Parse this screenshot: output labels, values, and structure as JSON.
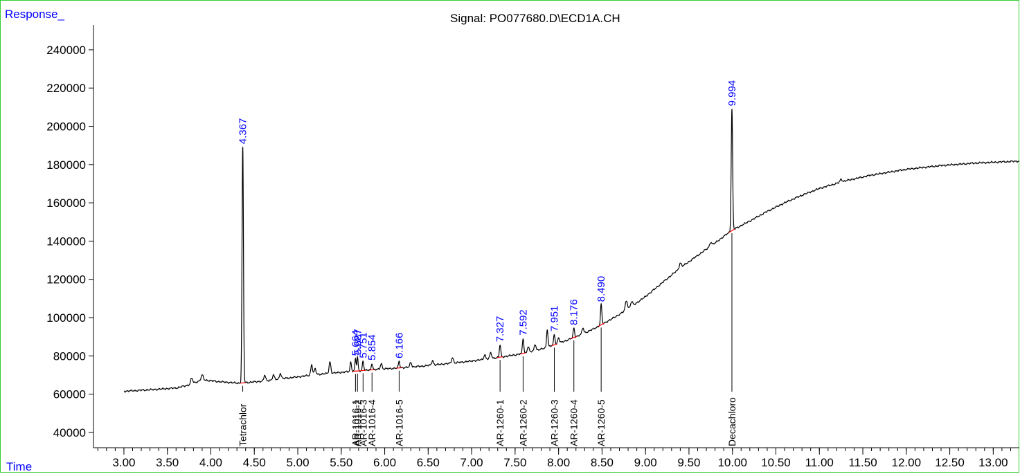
{
  "chart_data": {
    "type": "line",
    "title": "Signal: PO077680.D\\ECD1A.CH",
    "ylabel": "Response_",
    "xlabel": "Time",
    "xlim": [
      2.65,
      13.3
    ],
    "ylim": [
      32000,
      253000
    ],
    "x_ticks": [
      3.0,
      3.5,
      4.0,
      4.5,
      5.0,
      5.5,
      6.0,
      6.5,
      7.0,
      7.5,
      8.0,
      8.5,
      9.0,
      9.5,
      10.0,
      10.5,
      11.0,
      11.5,
      12.0,
      12.5,
      13.0
    ],
    "x_tick_labels": [
      "3.00",
      "3.50",
      "4.00",
      "4.50",
      "5.00",
      "5.50",
      "6.00",
      "6.50",
      "7.00",
      "7.50",
      "8.00",
      "8.50",
      "9.00",
      "9.50",
      "10.00",
      "10.50",
      "11.00",
      "11.50",
      "12.00",
      "12.50",
      "13.00"
    ],
    "y_ticks": [
      40000,
      60000,
      80000,
      100000,
      120000,
      140000,
      160000,
      180000,
      200000,
      220000,
      240000
    ],
    "y_tick_labels": [
      "40000",
      "60000",
      "80000",
      "100000",
      "120000",
      "140000",
      "160000",
      "180000",
      "200000",
      "220000",
      "240000"
    ],
    "grid": false,
    "colors": {
      "trace": "#000000",
      "peak_label": "#0000ff",
      "baseline": "#ff0000",
      "frame": "#33cc33",
      "axis_label": "#0000ff"
    },
    "baseline_points": [
      [
        3.0,
        61500
      ],
      [
        3.3,
        62300
      ],
      [
        3.6,
        63200
      ],
      [
        3.75,
        64800
      ],
      [
        3.9,
        67500
      ],
      [
        4.1,
        66500
      ],
      [
        4.3,
        65800
      ],
      [
        4.36,
        65700
      ],
      [
        4.4,
        66000
      ],
      [
        4.6,
        66800
      ],
      [
        4.8,
        68000
      ],
      [
        5.0,
        69000
      ],
      [
        5.2,
        70200
      ],
      [
        5.4,
        71000
      ],
      [
        5.6,
        71800
      ],
      [
        5.8,
        72500
      ],
      [
        6.0,
        73200
      ],
      [
        6.2,
        73800
      ],
      [
        6.4,
        74500
      ],
      [
        6.6,
        75400
      ],
      [
        6.8,
        76300
      ],
      [
        7.0,
        77300
      ],
      [
        7.2,
        78500
      ],
      [
        7.4,
        79800
      ],
      [
        7.6,
        81300
      ],
      [
        7.8,
        83500
      ],
      [
        8.0,
        86500
      ],
      [
        8.2,
        90000
      ],
      [
        8.4,
        94000
      ],
      [
        8.6,
        99000
      ],
      [
        8.8,
        104500
      ],
      [
        9.0,
        111000
      ],
      [
        9.2,
        118500
      ],
      [
        9.4,
        126000
      ],
      [
        9.6,
        132500
      ],
      [
        9.8,
        139000
      ],
      [
        9.99,
        145500
      ],
      [
        10.2,
        150500
      ],
      [
        10.4,
        155500
      ],
      [
        10.6,
        160000
      ],
      [
        10.8,
        164000
      ],
      [
        11.0,
        167500
      ],
      [
        11.3,
        171500
      ],
      [
        11.6,
        174500
      ],
      [
        12.0,
        177500
      ],
      [
        12.4,
        179500
      ],
      [
        12.8,
        180800
      ],
      [
        13.3,
        181800
      ]
    ],
    "peaks": [
      {
        "rt": 3.78,
        "height": 3000,
        "width": 0.012
      },
      {
        "rt": 3.9,
        "height": 2500,
        "width": 0.012
      },
      {
        "rt": 4.367,
        "height": 123500,
        "width": 0.008,
        "label": "4.367"
      },
      {
        "rt": 4.62,
        "height": 3000,
        "width": 0.01
      },
      {
        "rt": 4.72,
        "height": 2500,
        "width": 0.01
      },
      {
        "rt": 4.8,
        "height": 3000,
        "width": 0.01
      },
      {
        "rt": 5.16,
        "height": 5500,
        "width": 0.01
      },
      {
        "rt": 5.2,
        "height": 3000,
        "width": 0.01
      },
      {
        "rt": 5.37,
        "height": 6000,
        "width": 0.01
      },
      {
        "rt": 5.61,
        "height": 5000,
        "width": 0.008
      },
      {
        "rt": 5.664,
        "height": 6500,
        "width": 0.007,
        "label": "5.664"
      },
      {
        "rt": 5.687,
        "height": 7000,
        "width": 0.007,
        "label": "5.687"
      },
      {
        "rt": 5.751,
        "height": 5000,
        "width": 0.008,
        "label": "5.751"
      },
      {
        "rt": 5.854,
        "height": 3500,
        "width": 0.008,
        "label": "5.854"
      },
      {
        "rt": 5.96,
        "height": 3000,
        "width": 0.01
      },
      {
        "rt": 6.166,
        "height": 3500,
        "width": 0.008,
        "label": "6.166"
      },
      {
        "rt": 6.3,
        "height": 2500,
        "width": 0.01
      },
      {
        "rt": 6.55,
        "height": 2500,
        "width": 0.01
      },
      {
        "rt": 6.78,
        "height": 3000,
        "width": 0.01
      },
      {
        "rt": 7.15,
        "height": 2500,
        "width": 0.01
      },
      {
        "rt": 7.22,
        "height": 3000,
        "width": 0.01
      },
      {
        "rt": 7.327,
        "height": 6500,
        "width": 0.008,
        "label": "7.327"
      },
      {
        "rt": 7.592,
        "height": 8000,
        "width": 0.008,
        "label": "7.592"
      },
      {
        "rt": 7.65,
        "height": 3000,
        "width": 0.01
      },
      {
        "rt": 7.73,
        "height": 3500,
        "width": 0.01
      },
      {
        "rt": 7.87,
        "height": 9500,
        "width": 0.008
      },
      {
        "rt": 7.951,
        "height": 5500,
        "width": 0.008,
        "label": "7.951"
      },
      {
        "rt": 8.0,
        "height": 3000,
        "width": 0.01
      },
      {
        "rt": 8.176,
        "height": 5000,
        "width": 0.008,
        "label": "8.176"
      },
      {
        "rt": 8.28,
        "height": 3000,
        "width": 0.01
      },
      {
        "rt": 8.49,
        "height": 10500,
        "width": 0.008,
        "label": "8.490"
      },
      {
        "rt": 8.78,
        "height": 5000,
        "width": 0.012
      },
      {
        "rt": 8.84,
        "height": 2500,
        "width": 0.012
      },
      {
        "rt": 9.4,
        "height": 2500,
        "width": 0.012
      },
      {
        "rt": 9.75,
        "height": 2000,
        "width": 0.012
      },
      {
        "rt": 9.994,
        "height": 63500,
        "width": 0.008,
        "label": "9.994"
      },
      {
        "rt": 11.25,
        "height": 1500,
        "width": 0.012
      }
    ],
    "compound_labels": [
      {
        "rt": 4.367,
        "name": "Tetrachlor"
      },
      {
        "rt": 5.664,
        "name": "AR-1016-1"
      },
      {
        "rt": 5.687,
        "name": "AR-1016-2"
      },
      {
        "rt": 5.751,
        "name": "AR-1016-3"
      },
      {
        "rt": 5.854,
        "name": "AR-1016-4"
      },
      {
        "rt": 6.166,
        "name": "AR-1016-5"
      },
      {
        "rt": 7.327,
        "name": "AR-1260-1"
      },
      {
        "rt": 7.592,
        "name": "AR-1260-2"
      },
      {
        "rt": 7.951,
        "name": "AR-1260-3"
      },
      {
        "rt": 8.176,
        "name": "AR-1260-4"
      },
      {
        "rt": 8.49,
        "name": "AR-1260-5"
      },
      {
        "rt": 9.994,
        "name": "Decachloro"
      }
    ]
  }
}
